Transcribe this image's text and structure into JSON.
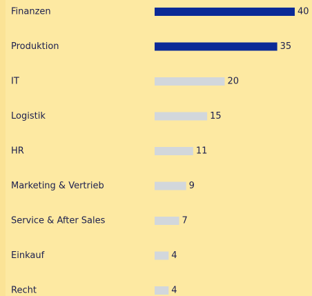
{
  "chart_data": {
    "type": "bar",
    "orientation": "horizontal",
    "categories": [
      "Finanzen",
      "Produktion",
      "IT",
      "Logistik",
      "HR",
      "Marketing & Vertrieb",
      "Service & After Sales",
      "Einkauf",
      "Recht"
    ],
    "values": [
      40,
      35,
      20,
      15,
      11,
      9,
      7,
      4,
      4
    ],
    "colors": [
      "#0b2a97",
      "#0b2a97",
      "#d2d7dc",
      "#d2d7dc",
      "#d2d7dc",
      "#d2d7dc",
      "#d2d7dc",
      "#d2d7dc",
      "#d2d7dc"
    ],
    "background": "#fde9a2"
  }
}
